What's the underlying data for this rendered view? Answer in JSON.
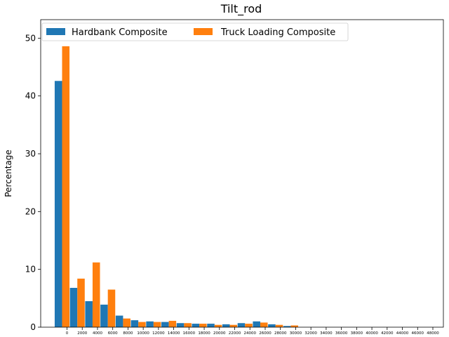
{
  "chart_data": {
    "type": "bar",
    "title": "Tilt_rod",
    "xlabel": "",
    "ylabel": "Percentage",
    "ylim": [
      0,
      53.2
    ],
    "yticks": [
      0,
      10,
      20,
      30,
      40,
      50
    ],
    "grid": false,
    "legend_position": "upper-left",
    "categories": [
      "0",
      "2000",
      "4000",
      "6000",
      "8000",
      "10000",
      "12000",
      "14000",
      "16000",
      "18000",
      "20000",
      "22000",
      "24000",
      "26000",
      "28000",
      "30000",
      "32000",
      "34000",
      "36000",
      "38000",
      "40000",
      "42000",
      "44000",
      "46000",
      "48000"
    ],
    "series": [
      {
        "name": "Hardbank Composite",
        "color": "#1f77b4",
        "values": [
          42.6,
          6.8,
          4.5,
          3.9,
          2.0,
          1.2,
          1.0,
          0.9,
          0.7,
          0.6,
          0.6,
          0.5,
          0.7,
          1.0,
          0.5,
          0.2,
          0,
          0,
          0,
          0,
          0,
          0,
          0,
          0,
          0
        ]
      },
      {
        "name": "Truck Loading Composite",
        "color": "#ff7f0e",
        "values": [
          48.6,
          8.4,
          11.2,
          6.5,
          1.5,
          0.9,
          0.9,
          1.1,
          0.7,
          0.6,
          0.4,
          0.4,
          0.6,
          0.8,
          0.4,
          0.3,
          0,
          0,
          0,
          0,
          0,
          0,
          0,
          0,
          0
        ]
      }
    ]
  }
}
